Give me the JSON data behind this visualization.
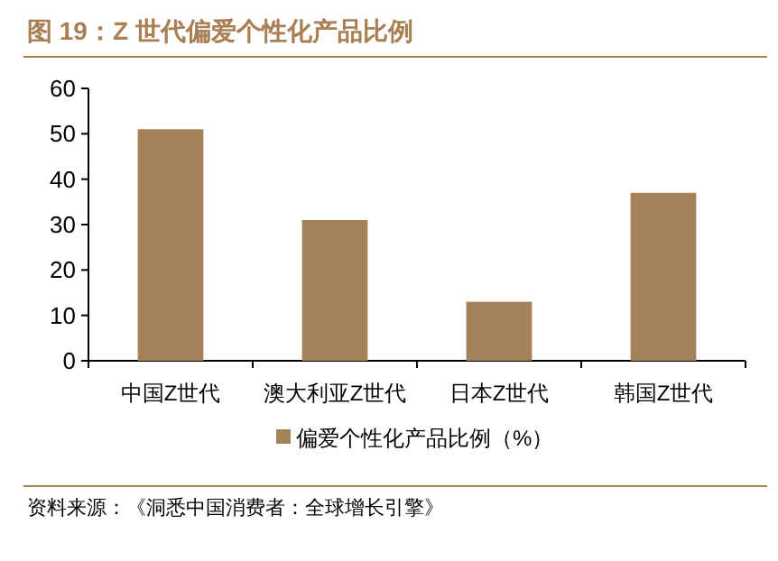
{
  "chart_data": {
    "type": "bar",
    "title": "图 19：Z 世代偏爱个性化产品比例",
    "categories": [
      "中国Z世代",
      "澳大利亚Z世代",
      "日本Z世代",
      "韩国Z世代"
    ],
    "series": [
      {
        "name": "偏爱个性化产品比例（%）",
        "color": "#a6825a",
        "values": [
          51,
          31,
          13,
          37
        ]
      }
    ],
    "ylim": [
      0,
      60
    ],
    "yticks": [
      0,
      10,
      20,
      30,
      40,
      50,
      60
    ],
    "legend": "bottom",
    "annotations": [
      "资料来源：《洞悉中国消费者：全球增长引擎》"
    ]
  }
}
